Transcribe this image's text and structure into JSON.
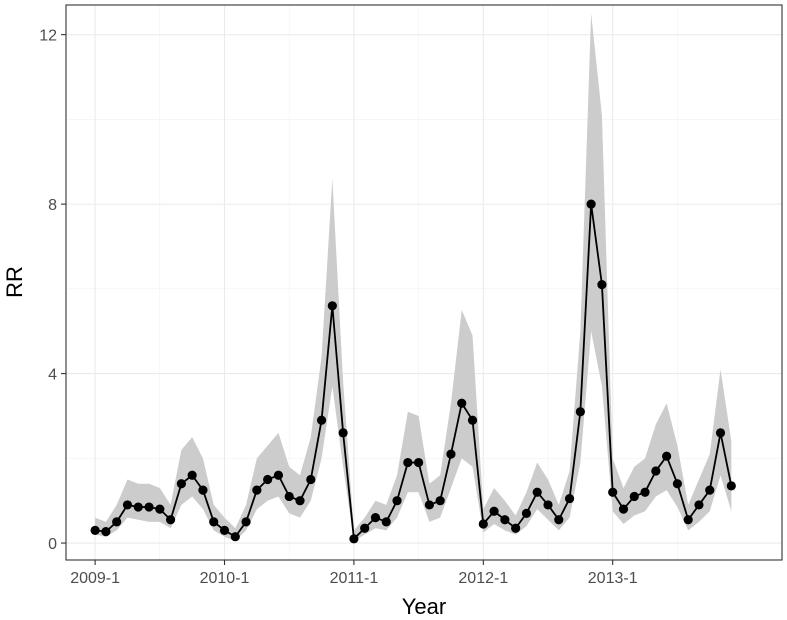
{
  "chart_data": {
    "type": "line",
    "xlabel": "Year",
    "ylabel": "RR",
    "x_tick_labels": [
      "2009-1",
      "2010-1",
      "2011-1",
      "2012-1",
      "2013-1"
    ],
    "y_tick_labels": [
      "0",
      "4",
      "8",
      "12"
    ],
    "y_ticks": [
      0,
      4,
      8,
      12
    ],
    "ylim": [
      -0.4,
      12.7
    ],
    "xlim_months_from_2009_1": [
      -2.7,
      63.7
    ],
    "x": [
      "2009-01",
      "2009-02",
      "2009-03",
      "2009-04",
      "2009-05",
      "2009-06",
      "2009-07",
      "2009-08",
      "2009-09",
      "2009-10",
      "2009-11",
      "2009-12",
      "2010-01",
      "2010-02",
      "2010-03",
      "2010-04",
      "2010-05",
      "2010-06",
      "2010-07",
      "2010-08",
      "2010-09",
      "2010-10",
      "2010-11",
      "2010-12",
      "2011-01",
      "2011-02",
      "2011-03",
      "2011-04",
      "2011-05",
      "2011-06",
      "2011-07",
      "2011-08",
      "2011-09",
      "2011-10",
      "2011-11",
      "2011-12",
      "2012-01",
      "2012-02",
      "2012-03",
      "2012-04",
      "2012-05",
      "2012-06",
      "2012-07",
      "2012-08",
      "2012-09",
      "2012-10",
      "2012-11",
      "2012-12",
      "2013-01",
      "2013-02",
      "2013-03",
      "2013-04",
      "2013-05",
      "2013-06",
      "2013-07",
      "2013-08",
      "2013-09",
      "2013-10",
      "2013-11",
      "2013-12"
    ],
    "series": [
      {
        "values": [
          0.3,
          0.27,
          0.5,
          0.9,
          0.85,
          0.85,
          0.8,
          0.55,
          1.4,
          1.6,
          1.25,
          0.5,
          0.3,
          0.15,
          0.5,
          1.25,
          1.5,
          1.6,
          1.1,
          1.0,
          1.5,
          2.9,
          5.6,
          2.6,
          0.1,
          0.35,
          0.6,
          0.5,
          1.0,
          1.9,
          1.9,
          0.9,
          1.0,
          2.1,
          3.3,
          2.9,
          0.45,
          0.75,
          0.55,
          0.35,
          0.7,
          1.2,
          0.9,
          0.55,
          1.05,
          3.1,
          8.0,
          6.1,
          1.2,
          0.8,
          1.1,
          1.2,
          1.7,
          2.05,
          1.4,
          0.55,
          0.9,
          1.25,
          2.6,
          1.35
        ],
        "lower": [
          0.2,
          0.15,
          0.3,
          0.6,
          0.55,
          0.5,
          0.5,
          0.35,
          0.9,
          1.1,
          0.8,
          0.3,
          0.15,
          0.05,
          0.3,
          0.8,
          1.0,
          1.1,
          0.7,
          0.6,
          1.0,
          2.0,
          3.7,
          1.8,
          0.05,
          0.2,
          0.35,
          0.3,
          0.6,
          1.2,
          1.2,
          0.5,
          0.6,
          1.3,
          2.0,
          1.8,
          0.25,
          0.45,
          0.3,
          0.2,
          0.4,
          0.8,
          0.55,
          0.3,
          0.6,
          1.9,
          5.0,
          3.7,
          0.75,
          0.45,
          0.65,
          0.75,
          1.1,
          1.25,
          0.85,
          0.3,
          0.5,
          0.75,
          1.6,
          0.75
        ],
        "upper": [
          0.6,
          0.5,
          0.9,
          1.5,
          1.4,
          1.4,
          1.3,
          0.9,
          2.2,
          2.5,
          2.0,
          0.9,
          0.6,
          0.35,
          0.9,
          2.0,
          2.3,
          2.6,
          1.8,
          1.6,
          2.5,
          4.4,
          8.6,
          3.8,
          0.3,
          0.6,
          1.0,
          0.9,
          1.6,
          3.1,
          3.0,
          1.4,
          1.6,
          3.3,
          5.5,
          4.9,
          0.8,
          1.3,
          1.0,
          0.65,
          1.2,
          1.9,
          1.5,
          0.9,
          1.7,
          5.0,
          12.5,
          10.1,
          2.0,
          1.3,
          1.8,
          2.0,
          2.8,
          3.3,
          2.3,
          0.9,
          1.5,
          2.1,
          4.1,
          2.4
        ]
      }
    ],
    "grid": true,
    "colors": {
      "line": "#000000",
      "band": "#cccccc",
      "border": "#333333",
      "grid": "#ebebeb"
    }
  }
}
